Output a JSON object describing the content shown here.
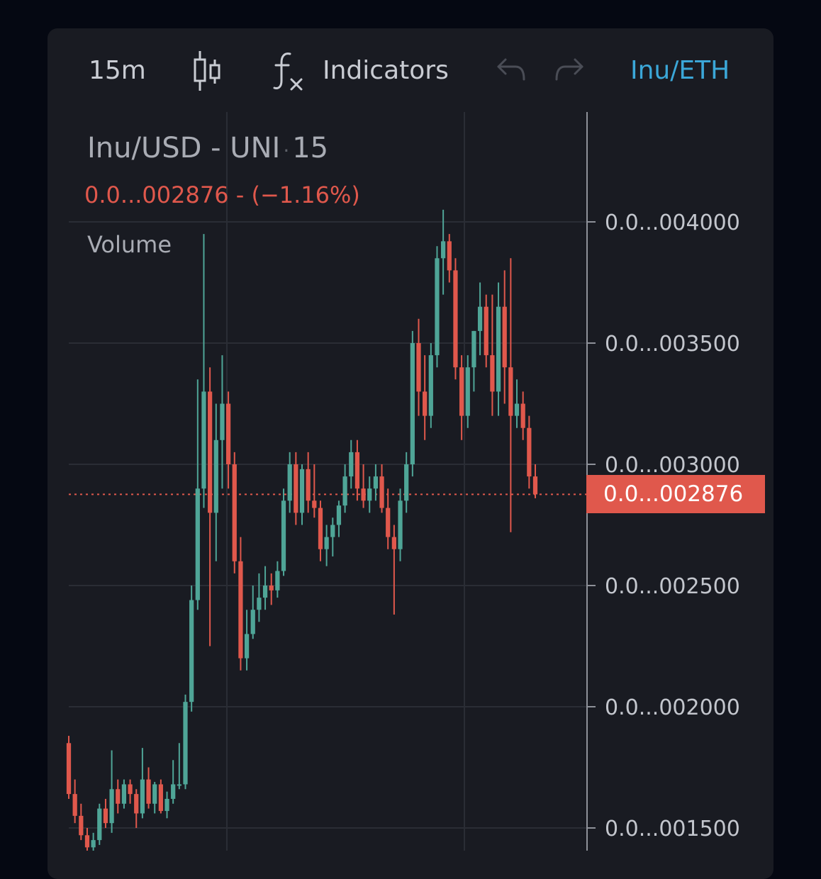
{
  "toolbar": {
    "interval": "15m",
    "chart_type_icon": "candlestick-icon",
    "indicators_icon": "fx-icon",
    "indicators_label": "Indicators",
    "undo_icon": "undo-icon",
    "redo_icon": "redo-icon",
    "pair_label": "Inu/ETH"
  },
  "legend": {
    "symbol": "Inu/USD - UNI",
    "interval": "15",
    "change": "0.0...002876  - (−1.16%)",
    "volume_label": "Volume"
  },
  "price_axis": {
    "labels": [
      "0.0...004000",
      "0.0...003500",
      "0.0...003000",
      "0.0...002500",
      "0.0...002000",
      "0.0...001500"
    ],
    "current_price": "0.0...002876"
  },
  "colors": {
    "background": "#191b22",
    "up": "#4fa597",
    "down": "#e0584c",
    "accent": "#3ba7d8"
  },
  "chart_data": {
    "type": "candlestick",
    "y_unit_note": "prices shown abbreviated as 0.0...0xxxxx",
    "ylim": [
      1400,
      4300
    ],
    "y_ticks": [
      4000,
      3500,
      3000,
      2500,
      2000,
      1500
    ],
    "current_price": 2876,
    "candles": [
      [
        1850,
        1880,
        1620,
        1640
      ],
      [
        1640,
        1700,
        1520,
        1550
      ],
      [
        1550,
        1600,
        1450,
        1470
      ],
      [
        1470,
        1500,
        1400,
        1420
      ],
      [
        1420,
        1480,
        1380,
        1450
      ],
      [
        1450,
        1600,
        1430,
        1580
      ],
      [
        1580,
        1620,
        1500,
        1520
      ],
      [
        1520,
        1820,
        1480,
        1660
      ],
      [
        1660,
        1700,
        1560,
        1600
      ],
      [
        1600,
        1700,
        1580,
        1680
      ],
      [
        1680,
        1700,
        1600,
        1640
      ],
      [
        1640,
        1660,
        1500,
        1560
      ],
      [
        1560,
        1830,
        1540,
        1700
      ],
      [
        1700,
        1750,
        1580,
        1600
      ],
      [
        1600,
        1690,
        1560,
        1680
      ],
      [
        1680,
        1700,
        1560,
        1570
      ],
      [
        1570,
        1650,
        1540,
        1620
      ],
      [
        1620,
        1780,
        1600,
        1680
      ],
      [
        1680,
        1850,
        1660,
        1680
      ],
      [
        1680,
        2050,
        1660,
        2020
      ],
      [
        2020,
        2500,
        1980,
        2440
      ],
      [
        2440,
        3350,
        2400,
        2900
      ],
      [
        2900,
        3950,
        2820,
        3300
      ],
      [
        3300,
        3400,
        2250,
        2800
      ],
      [
        2800,
        3250,
        2600,
        3100
      ],
      [
        3100,
        3450,
        2900,
        3250
      ],
      [
        3250,
        3300,
        2900,
        3000
      ],
      [
        3000,
        3050,
        2550,
        2600
      ],
      [
        2600,
        2700,
        2150,
        2200
      ],
      [
        2200,
        2400,
        2150,
        2300
      ],
      [
        2300,
        2500,
        2280,
        2400
      ],
      [
        2400,
        2550,
        2350,
        2450
      ],
      [
        2450,
        2580,
        2400,
        2500
      ],
      [
        2500,
        2550,
        2420,
        2480
      ],
      [
        2480,
        2600,
        2450,
        2560
      ],
      [
        2560,
        2900,
        2540,
        2850
      ],
      [
        2850,
        3050,
        2800,
        3000
      ],
      [
        3000,
        3050,
        2750,
        2800
      ],
      [
        2800,
        3000,
        2750,
        2980
      ],
      [
        2980,
        3050,
        2800,
        2850
      ],
      [
        2850,
        3000,
        2780,
        2820
      ],
      [
        2820,
        2850,
        2600,
        2650
      ],
      [
        2650,
        2750,
        2580,
        2700
      ],
      [
        2700,
        2780,
        2620,
        2750
      ],
      [
        2750,
        2850,
        2700,
        2830
      ],
      [
        2830,
        3000,
        2800,
        2950
      ],
      [
        2950,
        3100,
        2900,
        3050
      ],
      [
        3050,
        3100,
        2850,
        2900
      ],
      [
        2900,
        3000,
        2820,
        2850
      ],
      [
        2850,
        2950,
        2800,
        2900
      ],
      [
        2900,
        3000,
        2850,
        2950
      ],
      [
        2950,
        3000,
        2800,
        2820
      ],
      [
        2820,
        2900,
        2650,
        2700
      ],
      [
        2700,
        2750,
        2380,
        2650
      ],
      [
        2650,
        2900,
        2600,
        2850
      ],
      [
        2850,
        3050,
        2800,
        3000
      ],
      [
        3000,
        3550,
        2950,
        3500
      ],
      [
        3500,
        3600,
        3200,
        3300
      ],
      [
        3300,
        3450,
        3100,
        3200
      ],
      [
        3200,
        3500,
        3150,
        3450
      ],
      [
        3450,
        3900,
        3400,
        3850
      ],
      [
        3850,
        4050,
        3700,
        3920
      ],
      [
        3920,
        3950,
        3750,
        3800
      ],
      [
        3800,
        3850,
        3350,
        3400
      ],
      [
        3400,
        3450,
        3100,
        3200
      ],
      [
        3200,
        3450,
        3150,
        3400
      ],
      [
        3400,
        3550,
        3300,
        3550
      ],
      [
        3550,
        3750,
        3450,
        3650
      ],
      [
        3650,
        3700,
        3400,
        3450
      ],
      [
        3450,
        3700,
        3200,
        3300
      ],
      [
        3300,
        3750,
        3200,
        3650
      ],
      [
        3650,
        3800,
        3250,
        3400
      ],
      [
        3400,
        3850,
        2720,
        3200
      ],
      [
        3200,
        3350,
        3150,
        3250
      ],
      [
        3250,
        3300,
        3100,
        3150
      ],
      [
        3150,
        3200,
        2900,
        2950
      ],
      [
        2950,
        3000,
        2860,
        2876
      ]
    ]
  }
}
